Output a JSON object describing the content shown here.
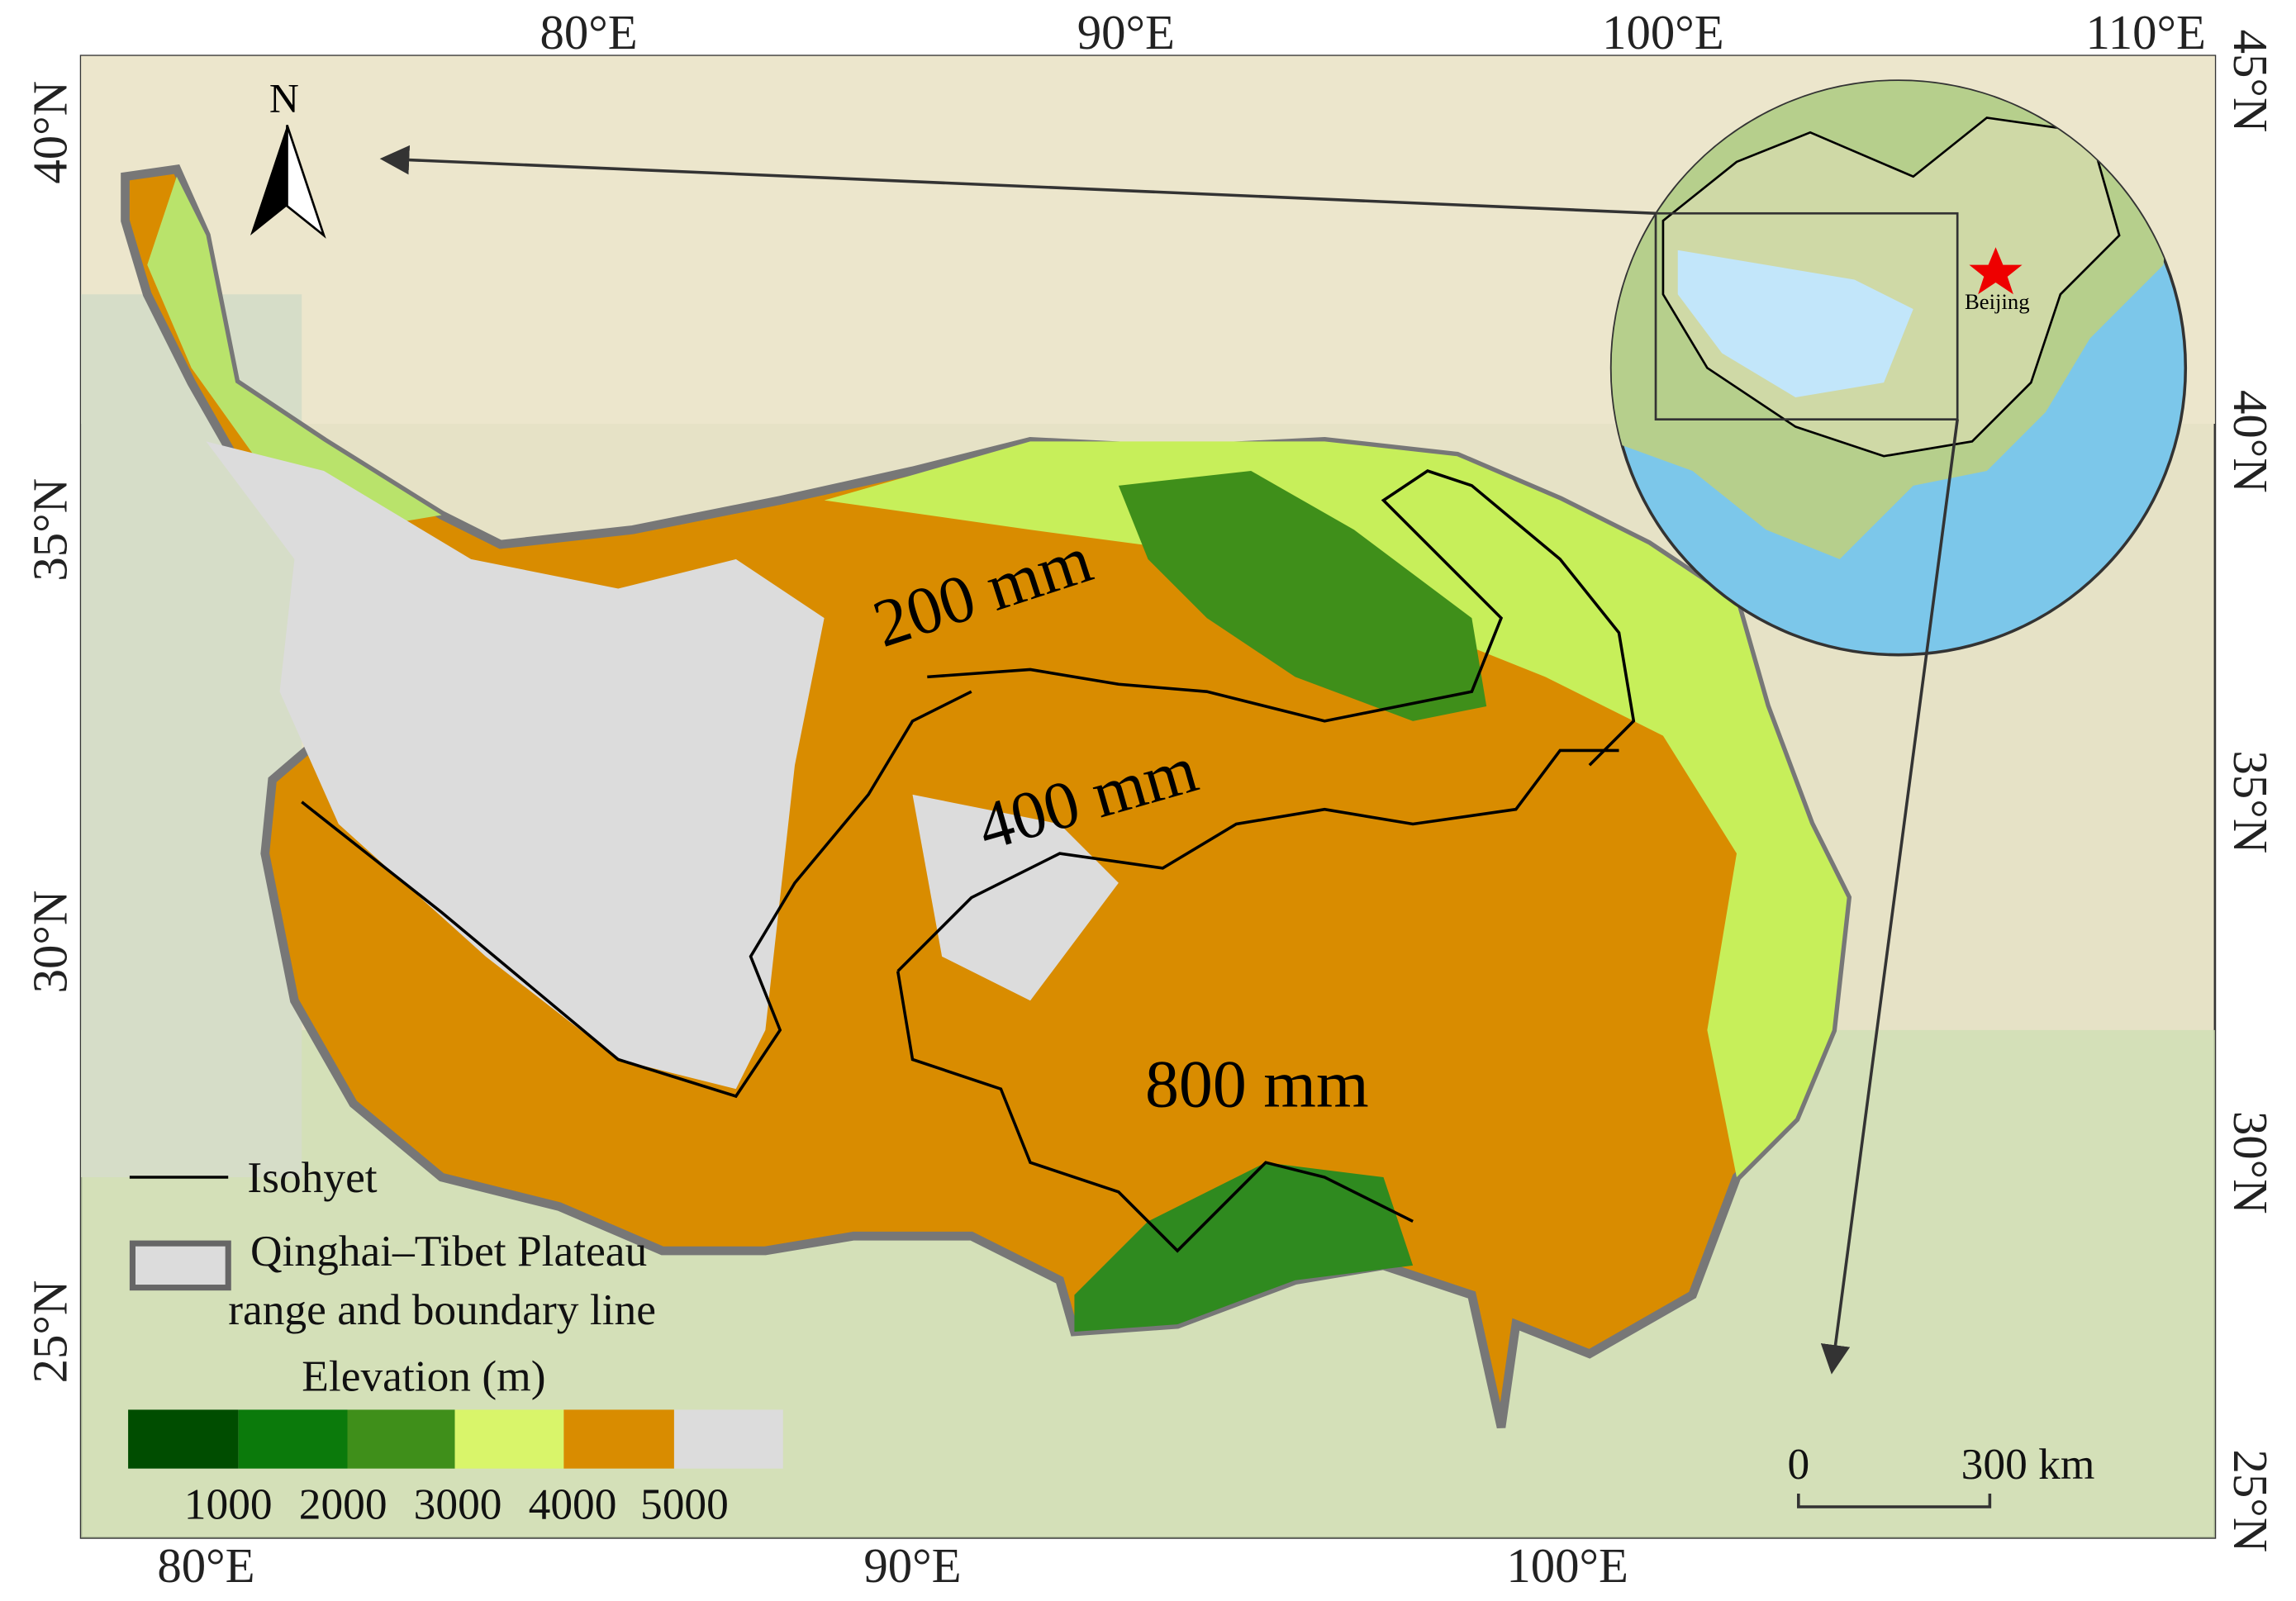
{
  "map": {
    "top_lon_labels": [
      "80°E",
      "90°E",
      "100°E",
      "110°E"
    ],
    "bottom_lon_labels": [
      "80°E",
      "90°E",
      "100°E"
    ],
    "left_lat_labels": [
      "40°N",
      "35°N",
      "30°N",
      "25°N"
    ],
    "right_lat_labels": [
      "45°N",
      "40°N",
      "35°N",
      "30°N",
      "25°N"
    ],
    "north_arrow": "N",
    "isohyets": [
      "200 mm",
      "400 mm",
      "800 mm"
    ],
    "inset_city": "Beijing",
    "legend": {
      "isohyet": "Isohyet",
      "boundary_line1": "Qinghai–Tibet Plateau",
      "boundary_line2": "range and boundary line",
      "elevation_title": "Elevation (m)",
      "elevation_labels": [
        "1000",
        "2000",
        "3000",
        "4000",
        "5000"
      ]
    },
    "scale_bar": {
      "start": "0",
      "end": "300",
      "unit": "km"
    }
  }
}
